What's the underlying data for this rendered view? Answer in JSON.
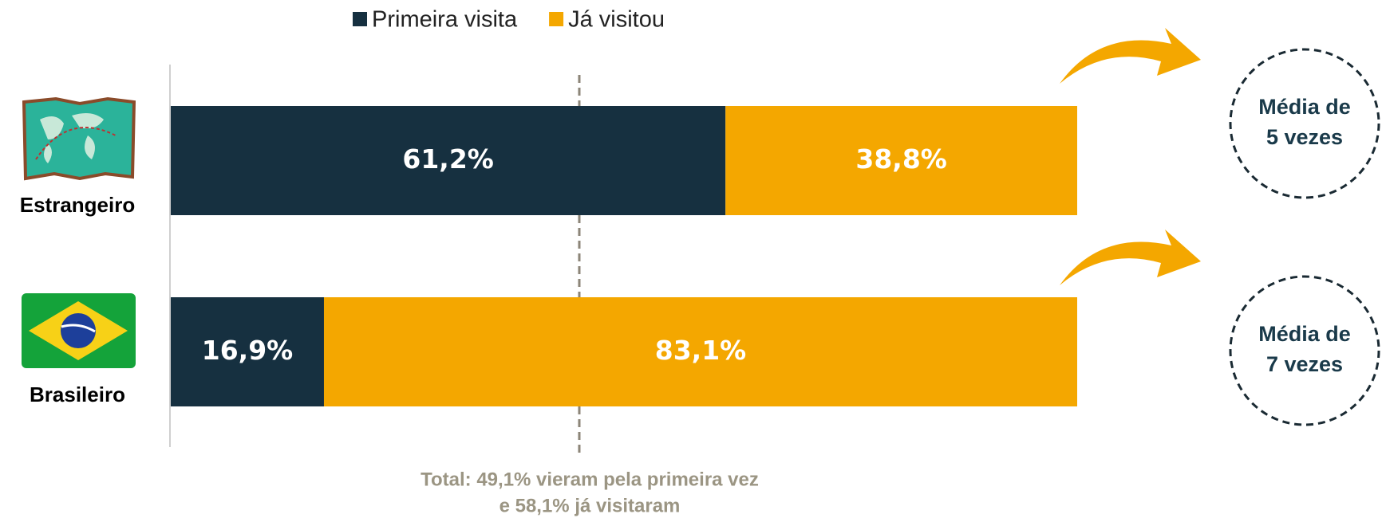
{
  "chart_data": {
    "type": "stacked_bar_horizontal",
    "categories": [
      "Estrangeiro",
      "Brasileiro"
    ],
    "series": [
      {
        "name": "Primeira visita",
        "color": "#163040",
        "values": [
          61.2,
          16.9
        ],
        "value_labels": [
          "61,2%",
          "16,9%"
        ]
      },
      {
        "name": "Já visitou",
        "color": "#f4a700",
        "values": [
          38.8,
          83.1
        ],
        "value_labels": [
          "38,8%",
          "83,1%"
        ]
      }
    ],
    "xlim": [
      0,
      100
    ],
    "legend": "top",
    "total_note": [
      "Total: 49,1% vieram pela primeira vez",
      "e 58,1% já visitaram"
    ],
    "averages": [
      [
        "Média de",
        "5 vezes"
      ],
      [
        "Média de",
        "7 vezes"
      ]
    ]
  }
}
